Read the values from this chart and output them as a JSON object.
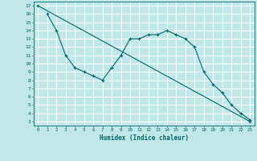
{
  "xlabel": "Humidex (Indice chaleur)",
  "bg_color": "#c0e8e8",
  "grid_color": "#ffffff",
  "line_color": "#006666",
  "xlim": [
    -0.5,
    23.5
  ],
  "ylim": [
    2.5,
    17.5
  ],
  "xticks": [
    0,
    1,
    2,
    3,
    4,
    5,
    6,
    7,
    8,
    9,
    10,
    11,
    12,
    13,
    14,
    15,
    16,
    17,
    18,
    19,
    20,
    21,
    22,
    23
  ],
  "yticks": [
    3,
    4,
    5,
    6,
    7,
    8,
    9,
    10,
    11,
    12,
    13,
    14,
    15,
    16,
    17
  ],
  "line1_x": [
    0,
    23
  ],
  "line1_y": [
    17,
    3.0
  ],
  "line2_x": [
    1,
    2,
    3,
    4,
    5,
    6,
    7,
    8,
    9,
    10,
    11,
    12,
    13,
    14,
    15,
    16,
    17,
    18,
    19,
    20,
    21,
    22,
    23
  ],
  "line2_y": [
    16,
    14,
    11,
    9.5,
    9,
    8.5,
    8,
    9.5,
    11,
    13,
    13,
    13.5,
    13.5,
    14,
    13.5,
    13,
    12,
    9,
    7.5,
    6.5,
    5,
    4,
    3.2
  ]
}
